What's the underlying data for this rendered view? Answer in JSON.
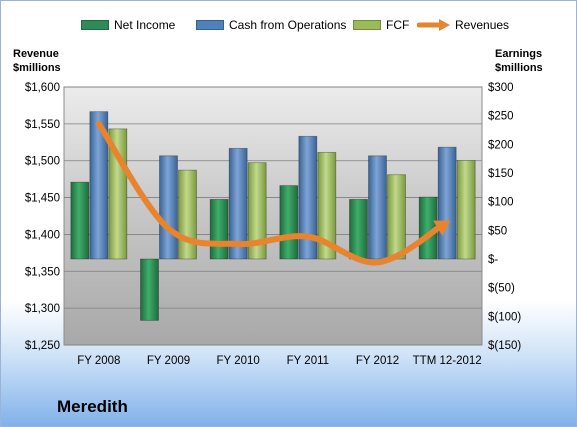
{
  "company": "Meredith",
  "legend": {
    "net_income": "Net Income",
    "cfo": "Cash from Operations",
    "fcf": "FCF",
    "revenues": "Revenues"
  },
  "axis": {
    "left_title_line1": "Revenue",
    "left_title_line2": "$millions",
    "right_title_line1": "Earnings",
    "right_title_line2": "$millions"
  },
  "colors": {
    "net_income": "#2e8b57",
    "cfo": "#4f81bd",
    "fcf": "#9bbb59",
    "revenues": "#e8832e"
  },
  "chart_data": {
    "type": "bar",
    "categories": [
      "FY 2008",
      "FY 2009",
      "FY 2010",
      "FY 2011",
      "FY 2012",
      "TTM 12-2012"
    ],
    "series": [
      {
        "name": "Net Income",
        "axis": "right",
        "values": [
          134,
          -107,
          104,
          128,
          104,
          108
        ]
      },
      {
        "name": "Cash from Operations",
        "axis": "right",
        "values": [
          257,
          180,
          193,
          214,
          180,
          195
        ]
      },
      {
        "name": "FCF",
        "axis": "right",
        "values": [
          227,
          155,
          168,
          186,
          147,
          172
        ]
      },
      {
        "name": "Revenues",
        "axis": "left",
        "type": "line",
        "values": [
          1550,
          1408,
          1387,
          1397,
          1362,
          1416
        ]
      }
    ],
    "left_axis": {
      "min": 1250,
      "max": 1600,
      "step": 50,
      "ticks": [
        "$1,250",
        "$1,300",
        "$1,350",
        "$1,400",
        "$1,450",
        "$1,500",
        "$1,550",
        "$1,600"
      ]
    },
    "right_axis": {
      "min": -150,
      "max": 300,
      "step": 50,
      "ticks": [
        "$(150)",
        "$(100)",
        "$(50)",
        "$-",
        "$50",
        "$100",
        "$150",
        "$200",
        "$250",
        "$300"
      ]
    },
    "legend_position": "top",
    "grid": true
  }
}
